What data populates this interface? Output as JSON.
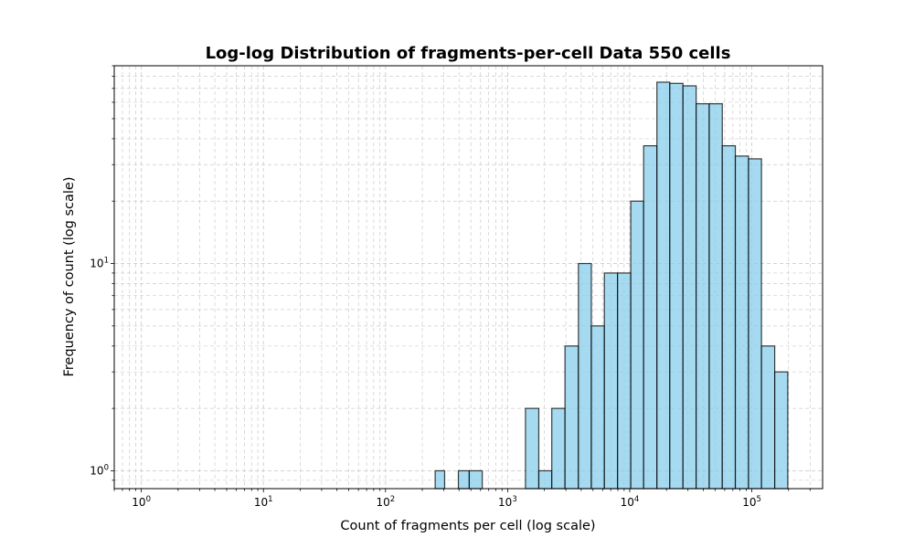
{
  "chart_data": {
    "type": "bar",
    "title": "Log-log Distribution of fragments-per-cell Data 550 cells",
    "xlabel": "Count of fragments per cell (log scale)",
    "ylabel": "Frequency of count (log scale)",
    "xscale": "log",
    "yscale": "log",
    "xlim": [
      0.6,
      380000
    ],
    "ylim": [
      0.82,
      90
    ],
    "grid": true,
    "colors": {
      "bar_fill": "#87ceeb",
      "bar_edge": "#000000",
      "grid": "#cccccc"
    },
    "x_ticks": [
      {
        "base": "10",
        "exp": "0",
        "value": 1
      },
      {
        "base": "10",
        "exp": "1",
        "value": 10
      },
      {
        "base": "10",
        "exp": "2",
        "value": 100
      },
      {
        "base": "10",
        "exp": "3",
        "value": 1000
      },
      {
        "base": "10",
        "exp": "4",
        "value": 10000
      },
      {
        "base": "10",
        "exp": "5",
        "value": 100000
      }
    ],
    "y_ticks": [
      {
        "base": "10",
        "exp": "0",
        "value": 1
      },
      {
        "base": "10",
        "exp": "1",
        "value": 10
      }
    ],
    "bins": [
      {
        "x0": 255,
        "x1": 305,
        "count": 1
      },
      {
        "x0": 395,
        "x1": 485,
        "count": 1
      },
      {
        "x0": 485,
        "x1": 620,
        "count": 1
      },
      {
        "x0": 1400,
        "x1": 1800,
        "count": 2
      },
      {
        "x0": 1800,
        "x1": 2300,
        "count": 1
      },
      {
        "x0": 2300,
        "x1": 2950,
        "count": 2
      },
      {
        "x0": 2950,
        "x1": 3800,
        "count": 4
      },
      {
        "x0": 3800,
        "x1": 4850,
        "count": 10
      },
      {
        "x0": 4850,
        "x1": 6200,
        "count": 5
      },
      {
        "x0": 6200,
        "x1": 7950,
        "count": 9
      },
      {
        "x0": 7950,
        "x1": 10200,
        "count": 9
      },
      {
        "x0": 10200,
        "x1": 13000,
        "count": 20
      },
      {
        "x0": 13000,
        "x1": 16700,
        "count": 37
      },
      {
        "x0": 16700,
        "x1": 21300,
        "count": 75
      },
      {
        "x0": 21300,
        "x1": 27300,
        "count": 74
      },
      {
        "x0": 27300,
        "x1": 35000,
        "count": 72
      },
      {
        "x0": 35000,
        "x1": 44800,
        "count": 59
      },
      {
        "x0": 44800,
        "x1": 57300,
        "count": 59
      },
      {
        "x0": 57300,
        "x1": 73300,
        "count": 37
      },
      {
        "x0": 73300,
        "x1": 94000,
        "count": 33
      },
      {
        "x0": 94000,
        "x1": 120000,
        "count": 32
      },
      {
        "x0": 120000,
        "x1": 154000,
        "count": 4
      },
      {
        "x0": 154000,
        "x1": 197000,
        "count": 3
      }
    ]
  }
}
